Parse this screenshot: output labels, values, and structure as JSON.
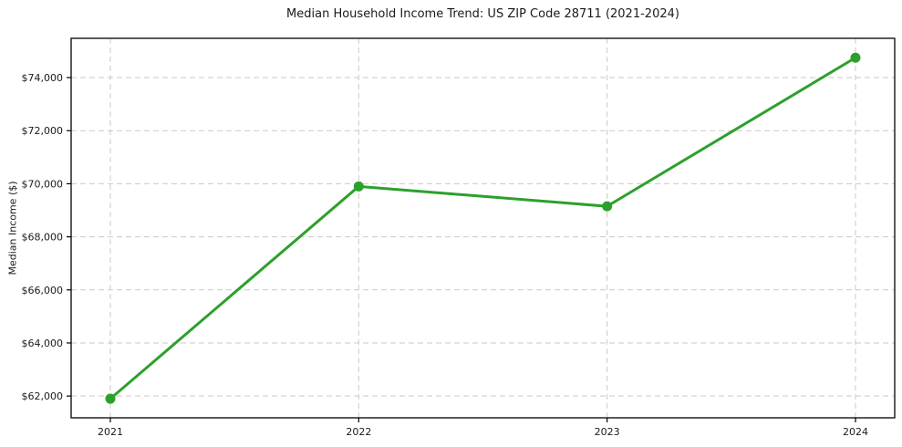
{
  "chart_data": {
    "type": "line",
    "title": "Median Household Income Trend: US ZIP Code 28711 (2021-2024)",
    "xlabel": "",
    "ylabel": "Median Income ($)",
    "categories": [
      "2021",
      "2022",
      "2023",
      "2024"
    ],
    "series": [
      {
        "name": "Median Household Income",
        "values": [
          61900,
          69900,
          69150,
          74750
        ],
        "color": "#2ca02c",
        "marker": "circle"
      }
    ],
    "y_ticks": [
      62000,
      64000,
      66000,
      68000,
      70000,
      72000,
      74000
    ],
    "y_tick_labels": [
      "$62,000",
      "$64,000",
      "$66,000",
      "$68,000",
      "$70,000",
      "$72,000",
      "$74,000"
    ],
    "ylim": [
      61180,
      75480
    ],
    "grid": "both-dashed",
    "grid_color": "#c9c9c9",
    "frame": "full-box",
    "legend": "none",
    "background": "#ffffff"
  }
}
